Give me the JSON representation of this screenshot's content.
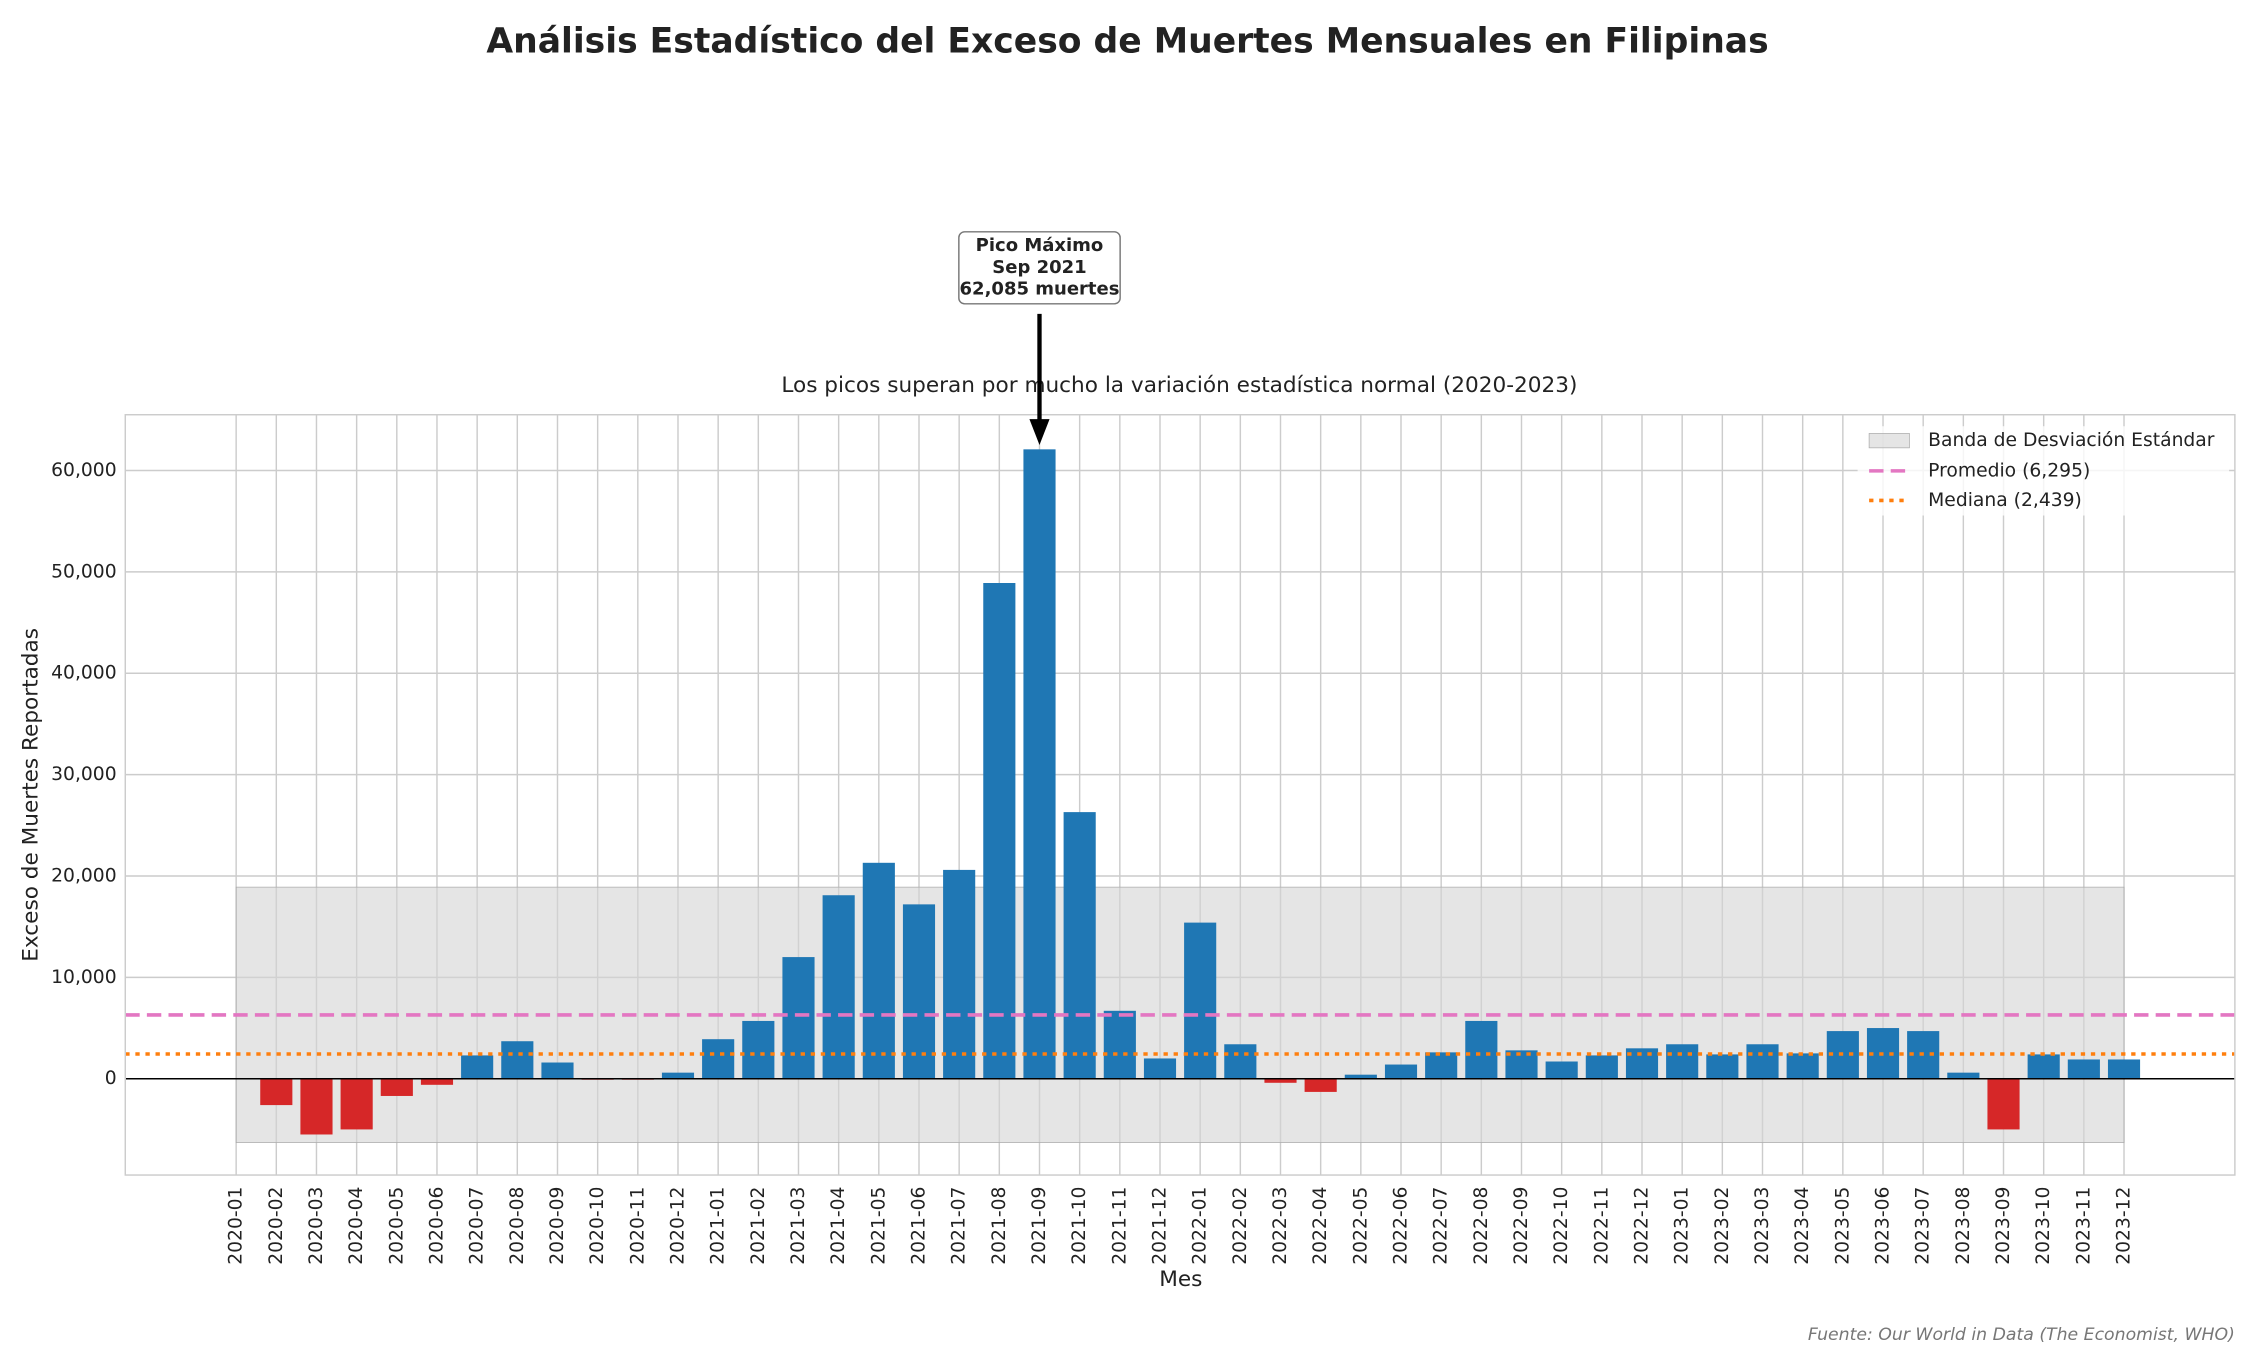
{
  "chart_data": {
    "type": "bar",
    "title": "Análisis Estadístico del Exceso de Muertes Mensuales en Filipinas",
    "subtitle": "Los picos superan por mucho la variación estadística normal (2020-2023)",
    "x_label": "Mes",
    "y_label": "Exceso de Muertes Reportadas",
    "source": "Fuente: Our World in Data (The Economist, WHO)",
    "categories": [
      "2020-01",
      "2020-02",
      "2020-03",
      "2020-04",
      "2020-05",
      "2020-06",
      "2020-07",
      "2020-08",
      "2020-09",
      "2020-10",
      "2020-11",
      "2020-12",
      "2021-01",
      "2021-02",
      "2021-03",
      "2021-04",
      "2021-05",
      "2021-06",
      "2021-07",
      "2021-08",
      "2021-09",
      "2021-10",
      "2021-11",
      "2021-12",
      "2022-01",
      "2022-02",
      "2022-03",
      "2022-04",
      "2022-05",
      "2022-06",
      "2022-07",
      "2022-08",
      "2022-09",
      "2022-10",
      "2022-11",
      "2022-12",
      "2023-01",
      "2023-02",
      "2023-03",
      "2023-04",
      "2023-05",
      "2023-06",
      "2023-07",
      "2023-08",
      "2023-09",
      "2023-10",
      "2023-11",
      "2023-12"
    ],
    "values": [
      0,
      -2600,
      -5500,
      -5000,
      -1700,
      -600,
      2300,
      3700,
      1600,
      -100,
      -100,
      600,
      3900,
      5700,
      12000,
      18100,
      21300,
      17200,
      20600,
      48900,
      62085,
      26300,
      6700,
      2000,
      15400,
      3400,
      -400,
      -1300,
      400,
      1400,
      2600,
      5700,
      2800,
      1700,
      2300,
      3000,
      3400,
      2400,
      3400,
      2500,
      4700,
      5000,
      4700,
      600,
      -5000,
      2400,
      1900,
      1900
    ],
    "color": "#1f77b4",
    "negative_color": "#d62728",
    "ylim": [
      -9500,
      65500
    ],
    "yticks": [
      0,
      {
        "value": 10000,
        "label": "10,000"
      },
      {
        "value": 20000,
        "label": "20,000"
      },
      {
        "value": 30000,
        "label": "30,000"
      },
      {
        "value": 40000,
        "label": "40,000"
      },
      {
        "value": 50000,
        "label": "50,000"
      },
      {
        "value": 60000,
        "label": "60,000"
      }
    ],
    "grid": true,
    "band": {
      "name": "Banda de Desviación Estándar",
      "range": [
        -6300,
        18900
      ],
      "color": "#d3d3d3"
    },
    "reference_lines": [
      {
        "name": "Promedio (6,295)",
        "value": 6295,
        "color": "#e377c2",
        "style": "dashed"
      },
      {
        "name": "Mediana (2,439)",
        "value": 2439,
        "color": "#ff7f0e",
        "style": "dotted"
      }
    ],
    "legend": "upper right",
    "annotation": [
      "Pico Máximo",
      "Sep 2021",
      "62,085 muertes"
    ]
  }
}
